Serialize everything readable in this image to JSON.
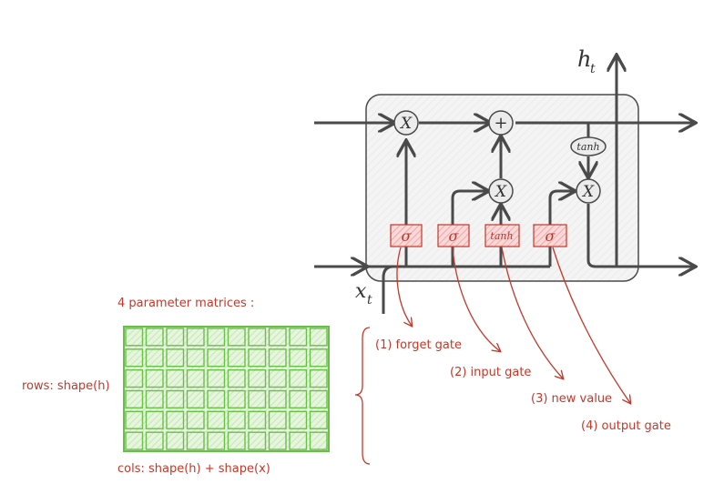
{
  "cell": {
    "output_label": "h",
    "output_sub": "t",
    "input_label": "x",
    "input_sub": "t",
    "multiply_symbol": "X",
    "add_symbol": "+",
    "tanh_symbol": "tanh",
    "gate_symbols": [
      "σ",
      "σ",
      "tanh",
      "σ"
    ]
  },
  "gates": [
    "(1) forget gate",
    "(2) input gate",
    "(3) new value",
    "(4) output gate"
  ],
  "matrix": {
    "title": "4 parameter matrices :",
    "rows_label": "rows: shape(h)",
    "cols_label": "cols: shape(h) + shape(x)",
    "rows": 6,
    "cols": 10
  },
  "colors": {
    "line": "#4a4a4a",
    "annotation": "#c0392b",
    "gate_fill": "#f4b4b4",
    "grid": "#6abf4b",
    "grid_fill": "#d8f0cc"
  }
}
